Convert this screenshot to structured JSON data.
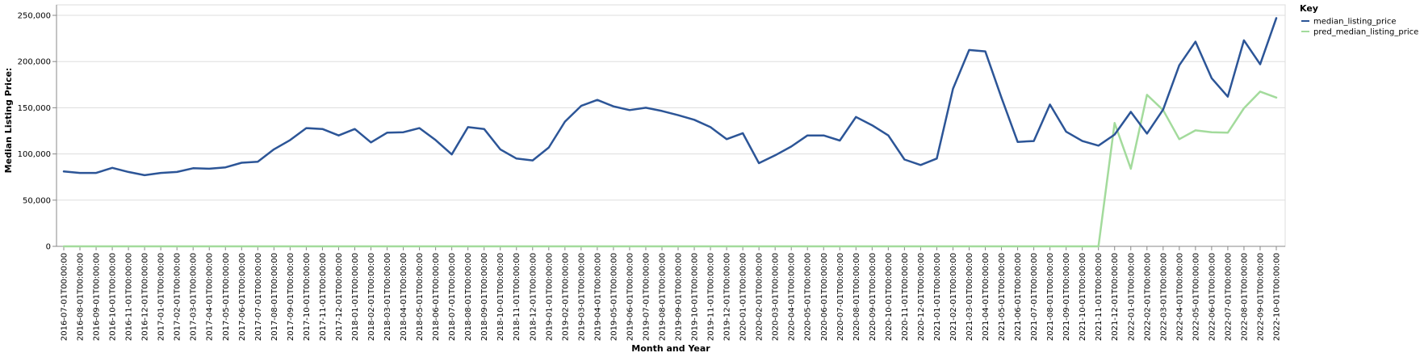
{
  "chart_data": {
    "type": "line",
    "xlabel": "Month and Year",
    "ylabel": "Median Listing Price:",
    "ylim": [
      0,
      250000
    ],
    "yticks": [
      0,
      50000,
      100000,
      150000,
      200000,
      250000
    ],
    "grid": true,
    "legend": {
      "title": "Key",
      "placement": "top-right"
    },
    "x": [
      "2016-07-01T00:00:00",
      "2016-08-01T00:00:00",
      "2016-09-01T00:00:00",
      "2016-10-01T00:00:00",
      "2016-11-01T00:00:00",
      "2016-12-01T00:00:00",
      "2017-01-01T00:00:00",
      "2017-02-01T00:00:00",
      "2017-03-01T00:00:00",
      "2017-04-01T00:00:00",
      "2017-05-01T00:00:00",
      "2017-06-01T00:00:00",
      "2017-07-01T00:00:00",
      "2017-08-01T00:00:00",
      "2017-09-01T00:00:00",
      "2017-10-01T00:00:00",
      "2017-11-01T00:00:00",
      "2017-12-01T00:00:00",
      "2018-01-01T00:00:00",
      "2018-02-01T00:00:00",
      "2018-03-01T00:00:00",
      "2018-04-01T00:00:00",
      "2018-05-01T00:00:00",
      "2018-06-01T00:00:00",
      "2018-07-01T00:00:00",
      "2018-08-01T00:00:00",
      "2018-09-01T00:00:00",
      "2018-10-01T00:00:00",
      "2018-11-01T00:00:00",
      "2018-12-01T00:00:00",
      "2019-01-01T00:00:00",
      "2019-02-01T00:00:00",
      "2019-03-01T00:00:00",
      "2019-04-01T00:00:00",
      "2019-05-01T00:00:00",
      "2019-06-01T00:00:00",
      "2019-07-01T00:00:00",
      "2019-08-01T00:00:00",
      "2019-09-01T00:00:00",
      "2019-10-01T00:00:00",
      "2019-11-01T00:00:00",
      "2019-12-01T00:00:00",
      "2020-01-01T00:00:00",
      "2020-02-01T00:00:00",
      "2020-03-01T00:00:00",
      "2020-04-01T00:00:00",
      "2020-05-01T00:00:00",
      "2020-06-01T00:00:00",
      "2020-07-01T00:00:00",
      "2020-08-01T00:00:00",
      "2020-09-01T00:00:00",
      "2020-10-01T00:00:00",
      "2020-11-01T00:00:00",
      "2020-12-01T00:00:00",
      "2021-01-01T00:00:00",
      "2021-02-01T00:00:00",
      "2021-03-01T00:00:00",
      "2021-04-01T00:00:00",
      "2021-05-01T00:00:00",
      "2021-06-01T00:00:00",
      "2021-07-01T00:00:00",
      "2021-08-01T00:00:00",
      "2021-09-01T00:00:00",
      "2021-10-01T00:00:00",
      "2021-11-01T00:00:00",
      "2021-12-01T00:00:00",
      "2022-01-01T00:00:00",
      "2022-02-01T00:00:00",
      "2022-03-01T00:00:00",
      "2022-04-01T00:00:00",
      "2022-05-01T00:00:00",
      "2022-06-01T00:00:00",
      "2022-07-01T00:00:00",
      "2022-08-01T00:00:00",
      "2022-09-01T00:00:00",
      "2022-10-01T00:00:00"
    ],
    "series": [
      {
        "name": "median_listing_price",
        "color": "#2c5597",
        "values": [
          81000,
          79500,
          79500,
          85000,
          80500,
          77000,
          79500,
          80500,
          84500,
          84000,
          85500,
          90500,
          91500,
          105000,
          115000,
          128000,
          127000,
          120000,
          127000,
          112500,
          123000,
          123500,
          128000,
          115000,
          99500,
          129000,
          127000,
          105000,
          95000,
          93000,
          107000,
          135000,
          152000,
          158500,
          151500,
          147500,
          150000,
          146500,
          142000,
          137000,
          129000,
          116000,
          122500,
          90000,
          98500,
          108000,
          120000,
          120000,
          114500,
          140000,
          131000,
          120000,
          94000,
          88000,
          95000,
          170500,
          212500,
          211000,
          161000,
          113000,
          114000,
          153500,
          124000,
          114000,
          109000,
          121000,
          145500,
          122000,
          148000,
          196000,
          221500,
          182000,
          162000,
          223000,
          197000,
          247000
        ]
      },
      {
        "name": "pred_median_listing_price",
        "color": "#a3db9c",
        "values": [
          0,
          0,
          0,
          0,
          0,
          0,
          0,
          0,
          0,
          0,
          0,
          0,
          0,
          0,
          0,
          0,
          0,
          0,
          0,
          0,
          0,
          0,
          0,
          0,
          0,
          0,
          0,
          0,
          0,
          0,
          0,
          0,
          0,
          0,
          0,
          0,
          0,
          0,
          0,
          0,
          0,
          0,
          0,
          0,
          0,
          0,
          0,
          0,
          0,
          0,
          0,
          0,
          0,
          0,
          0,
          0,
          0,
          0,
          0,
          0,
          0,
          0,
          0,
          0,
          0,
          133500,
          84000,
          164000,
          147500,
          116000,
          125500,
          123500,
          123000,
          149500,
          167500,
          161000
        ]
      }
    ]
  }
}
